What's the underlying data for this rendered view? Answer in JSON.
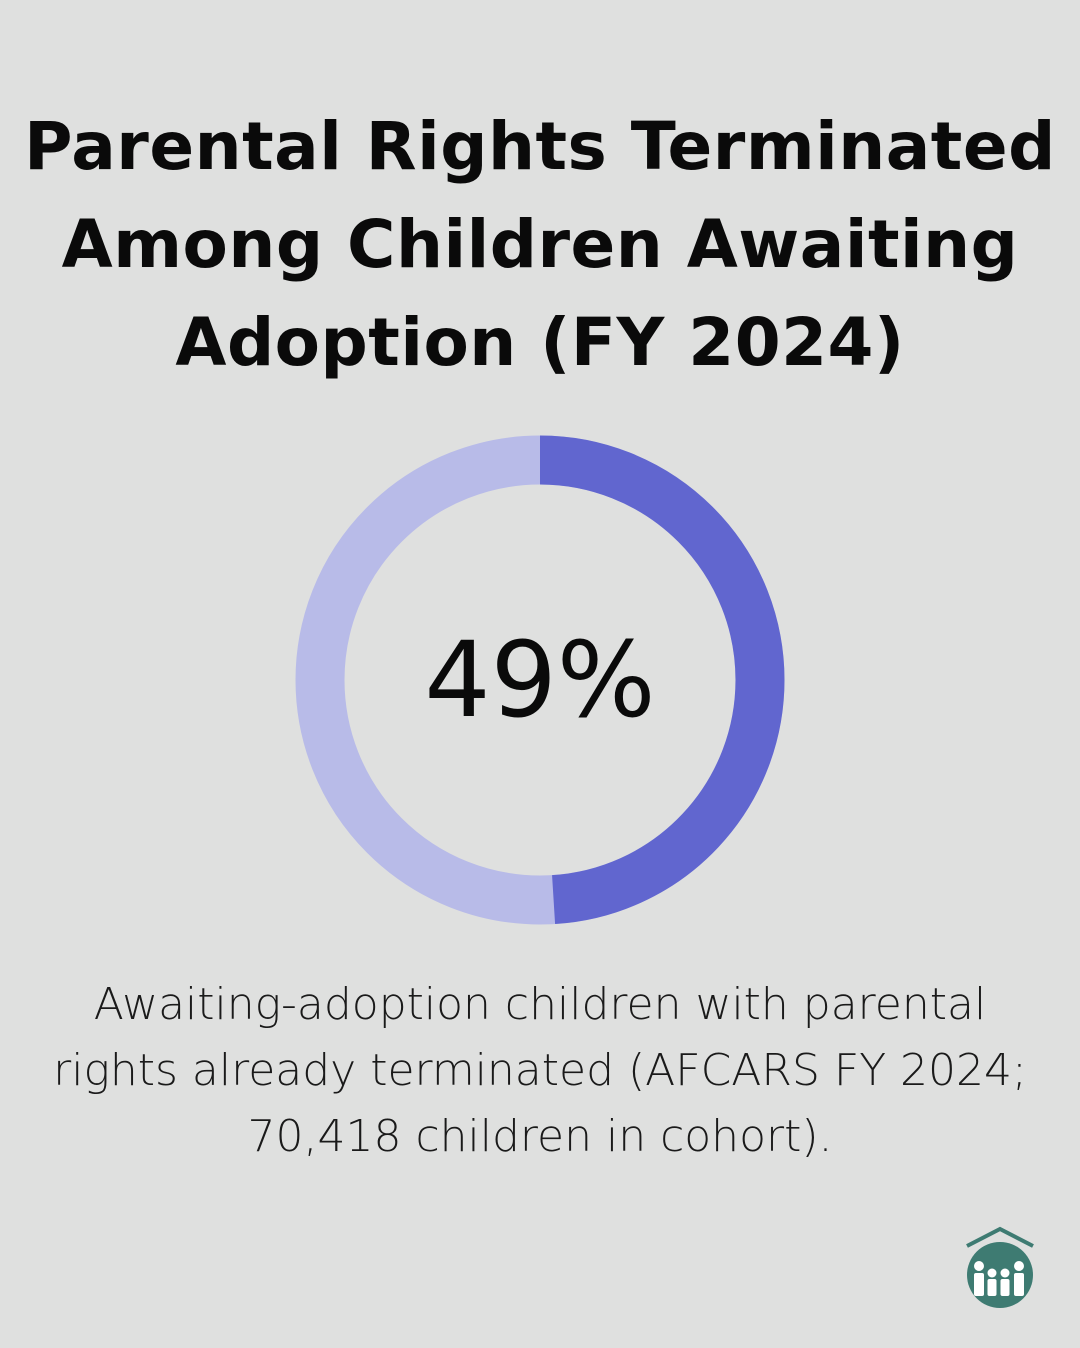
{
  "title": "Parental Rights Terminated Among Children Awaiting Adoption (FY 2024)",
  "chart_data": {
    "type": "pie",
    "variant": "donut",
    "value": 49,
    "max": 100,
    "center_label": "49%",
    "colors": {
      "filled": "#6166cf",
      "remainder": "#b8bbe8"
    },
    "caption": "Awaiting-adoption children with parental rights already terminated (AFCARS FY 2024; 70,418 children in cohort)."
  },
  "logo": {
    "icon": "house-family-logo",
    "color": "#3e7b72"
  }
}
